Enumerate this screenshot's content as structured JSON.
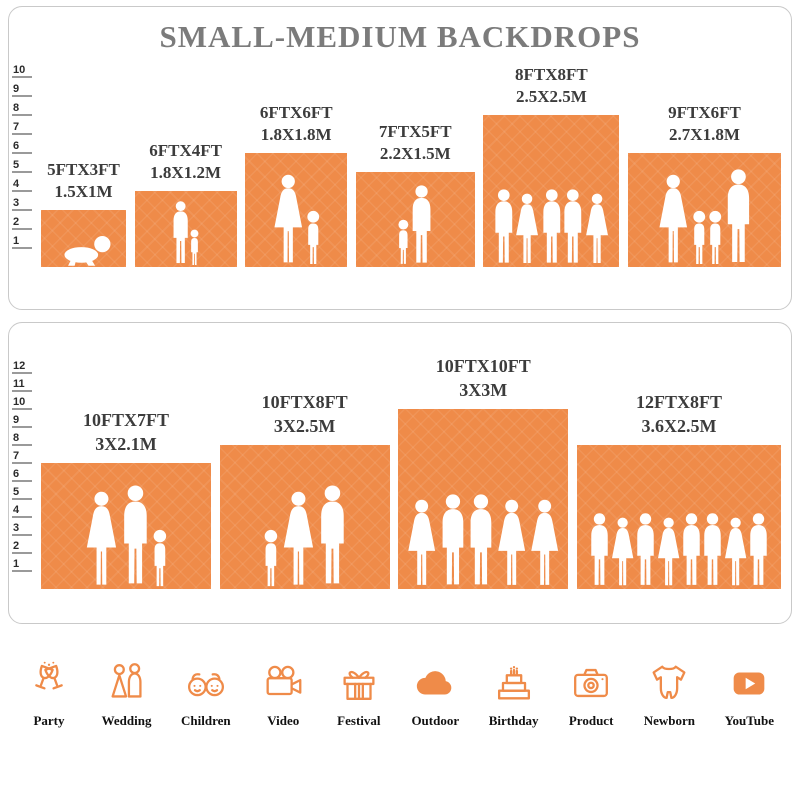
{
  "title": "SMALL-MEDIUM BACKDROPS",
  "colors": {
    "accent": "#EF8B49",
    "title_text": "#7B7B7B",
    "label_text": "#3C3C3C",
    "panel_border": "#C9C9C9"
  },
  "chart_data": [
    {
      "type": "bar",
      "title": "SMALL-MEDIUM BACKDROPS",
      "ylim": [
        0,
        10
      ],
      "ruler_ticks": [
        1,
        2,
        3,
        4,
        5,
        6,
        7,
        8,
        9,
        10
      ],
      "bars": [
        {
          "label_ft": "5FTX3FT",
          "label_m": "1.5X1M",
          "width_ft": 5,
          "height_ft": 3,
          "people": [
            "baby"
          ]
        },
        {
          "label_ft": "6FTX4FT",
          "label_m": "1.8X1.2M",
          "width_ft": 6,
          "height_ft": 4,
          "people": [
            "man",
            "child"
          ]
        },
        {
          "label_ft": "6FTX6FT",
          "label_m": "1.8X1.8M",
          "width_ft": 6,
          "height_ft": 6,
          "people": [
            "woman",
            "child"
          ]
        },
        {
          "label_ft": "7FTX5FT",
          "label_m": "2.2X1.5M",
          "width_ft": 7,
          "height_ft": 5,
          "people": [
            "child",
            "man"
          ]
        },
        {
          "label_ft": "8FTX8FT",
          "label_m": "2.5X2.5M",
          "width_ft": 8,
          "height_ft": 8,
          "people": [
            "man",
            "woman",
            "man",
            "man",
            "woman"
          ]
        },
        {
          "label_ft": "9FTX6FT",
          "label_m": "2.7X1.8M",
          "width_ft": 9,
          "height_ft": 6,
          "people": [
            "woman",
            "child",
            "child",
            "man"
          ]
        }
      ]
    },
    {
      "type": "bar",
      "ylim": [
        0,
        12
      ],
      "ruler_ticks": [
        1,
        2,
        3,
        4,
        5,
        6,
        7,
        8,
        9,
        10,
        11,
        12
      ],
      "bars": [
        {
          "label_ft": "10FTX7FT",
          "label_m": "3X2.1M",
          "width_ft": 10,
          "height_ft": 7,
          "people": [
            "woman",
            "man",
            "child"
          ]
        },
        {
          "label_ft": "10FTX8FT",
          "label_m": "3X2.5M",
          "width_ft": 10,
          "height_ft": 8,
          "people": [
            "child",
            "woman",
            "man"
          ]
        },
        {
          "label_ft": "10FTX10FT",
          "label_m": "3X3M",
          "width_ft": 10,
          "height_ft": 10,
          "people": [
            "woman",
            "man",
            "man",
            "woman",
            "woman"
          ]
        },
        {
          "label_ft": "12FTX8FT",
          "label_m": "3.6X2.5M",
          "width_ft": 12,
          "height_ft": 8,
          "people": [
            "man",
            "woman",
            "man",
            "woman",
            "man",
            "man",
            "woman",
            "man"
          ]
        }
      ]
    }
  ],
  "categories": [
    {
      "icon": "party-icon",
      "label": "Party"
    },
    {
      "icon": "wedding-icon",
      "label": "Wedding"
    },
    {
      "icon": "children-icon",
      "label": "Children"
    },
    {
      "icon": "video-icon",
      "label": "Video"
    },
    {
      "icon": "festival-icon",
      "label": "Festival"
    },
    {
      "icon": "outdoor-icon",
      "label": "Outdoor"
    },
    {
      "icon": "birthday-icon",
      "label": "Birthday"
    },
    {
      "icon": "product-icon",
      "label": "Product"
    },
    {
      "icon": "newborn-icon",
      "label": "Newborn"
    },
    {
      "icon": "youtube-icon",
      "label": "YouTube"
    }
  ]
}
